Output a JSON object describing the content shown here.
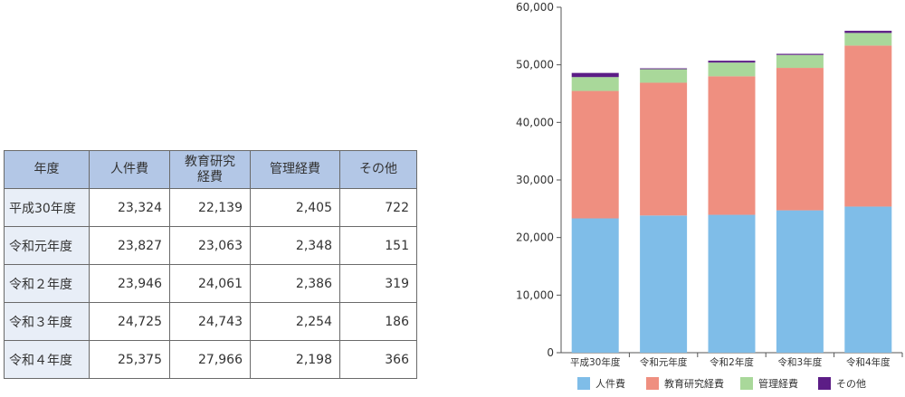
{
  "table": {
    "headers": [
      "年度",
      "人件費",
      "教育研究\n経費",
      "管理経費",
      "その他"
    ],
    "rows": [
      {
        "year": "平成30年度",
        "values": [
          "23,324",
          "22,139",
          "2,405",
          "722"
        ]
      },
      {
        "year": "令和元年度",
        "values": [
          "23,827",
          "23,063",
          "2,348",
          "151"
        ]
      },
      {
        "year": "令和２年度",
        "values": [
          "23,946",
          "24,061",
          "2,386",
          "319"
        ]
      },
      {
        "year": "令和３年度",
        "values": [
          "24,725",
          "24,743",
          "2,254",
          "186"
        ]
      },
      {
        "year": "令和４年度",
        "values": [
          "25,375",
          "27,966",
          "2,198",
          "366"
        ]
      }
    ]
  },
  "chart_data": {
    "type": "bar",
    "stacked": true,
    "categories": [
      "平成30年度",
      "令和元年度",
      "令和2年度",
      "令和3年度",
      "令和4年度"
    ],
    "series": [
      {
        "name": "人件費",
        "color": "#7fbde8",
        "values": [
          23324,
          23827,
          23946,
          24725,
          25375
        ]
      },
      {
        "name": "教育研究経費",
        "color": "#ef8f80",
        "values": [
          22139,
          23063,
          24061,
          24743,
          27966
        ]
      },
      {
        "name": "管理経費",
        "color": "#a9d89a",
        "values": [
          2405,
          2348,
          2386,
          2254,
          2198
        ]
      },
      {
        "name": "その他",
        "color": "#5c1d86",
        "values": [
          722,
          151,
          319,
          186,
          366
        ]
      }
    ],
    "y_ticks": [
      "0",
      "10,000",
      "20,000",
      "30,000",
      "40,000",
      "50,000",
      "60,000"
    ],
    "ylim": [
      0,
      60000
    ],
    "grid": false,
    "legend_position": "bottom"
  }
}
